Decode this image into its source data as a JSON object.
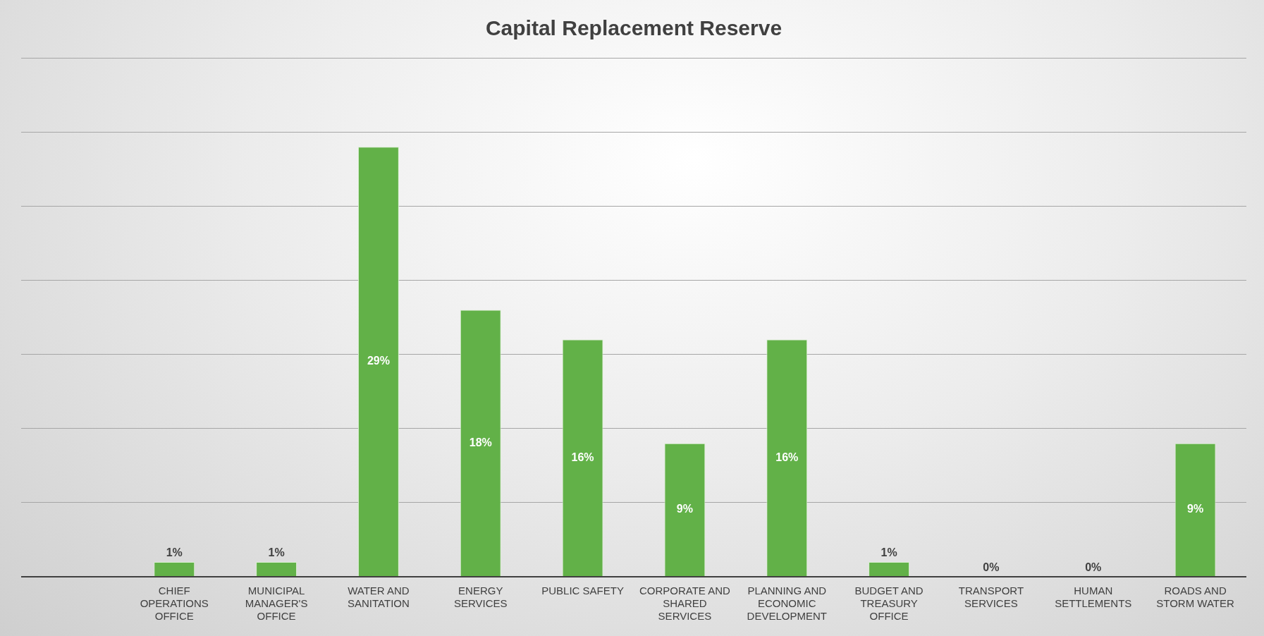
{
  "chart_data": {
    "type": "bar",
    "title": "Capital Replacement Reserve",
    "categories": [
      null,
      "CHIEF OPERATIONS OFFICE",
      "MUNICIPAL MANAGER'S OFFICE",
      "WATER AND SANITATION",
      "ENERGY SERVICES",
      "PUBLIC SAFETY",
      "CORPORATE AND SHARED SERVICES",
      "PLANNING AND ECONOMIC DEVELOPMENT",
      "BUDGET AND TREASURY OFFICE",
      "TRANSPORT SERVICES",
      "HUMAN SETTLEMENTS",
      "ROADS AND STORM WATER"
    ],
    "values": [
      null,
      1,
      1,
      29,
      18,
      16,
      9,
      16,
      1,
      0,
      0,
      9
    ],
    "value_labels": [
      null,
      "1%",
      "1%",
      "29%",
      "18%",
      "16%",
      "9%",
      "16%",
      "1%",
      "0%",
      "0%",
      "9%"
    ],
    "color": "#62b148",
    "ylim": [
      0,
      35
    ],
    "yticks": [
      0,
      5,
      10,
      15,
      20,
      25,
      30,
      35
    ],
    "grid": "y",
    "tick_labels": "x",
    "legend": false
  }
}
